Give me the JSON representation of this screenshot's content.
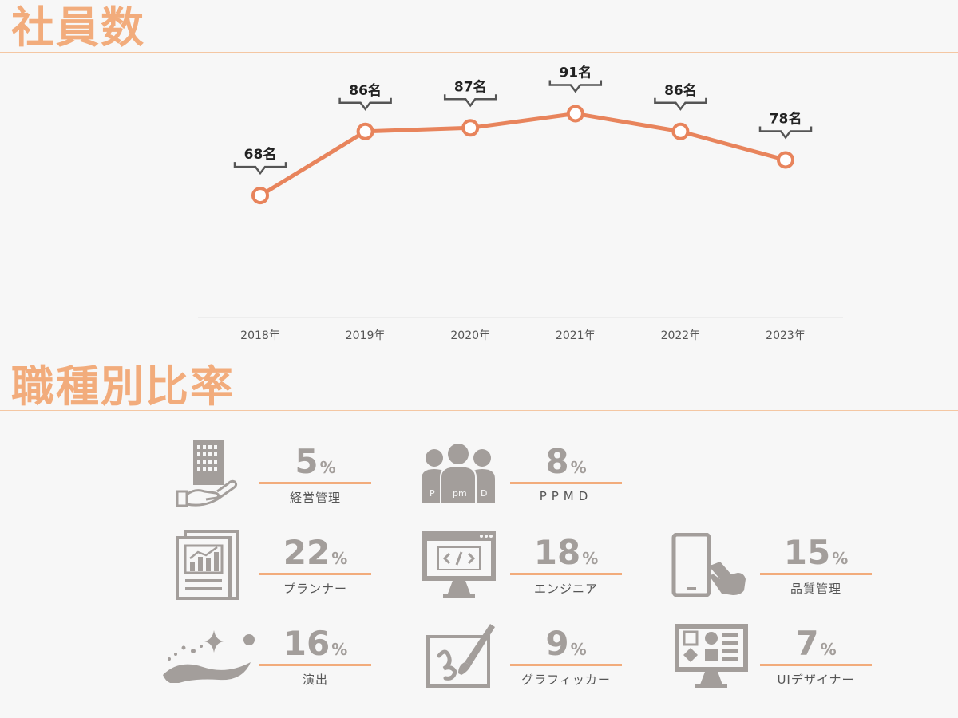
{
  "sections": {
    "employees_title": "社員数",
    "ratio_title": "職種別比率"
  },
  "colors": {
    "accent": "#f2ac7c",
    "line": "#e8845c",
    "icon": "#a39e9b"
  },
  "chart_data": {
    "type": "line",
    "title": "社員数",
    "categories": [
      "2018年",
      "2019年",
      "2020年",
      "2021年",
      "2022年",
      "2023年"
    ],
    "values": [
      68,
      86,
      87,
      91,
      86,
      78
    ],
    "data_labels": [
      "68名",
      "86名",
      "87名",
      "91名",
      "86名",
      "78名"
    ],
    "ylim": [
      40,
      105
    ],
    "xlabel": "",
    "ylabel": "",
    "grid": false
  },
  "occupations": [
    {
      "value": "5",
      "unit": "%",
      "label": "経営管理",
      "icon": "building-hand-icon"
    },
    {
      "value": "8",
      "unit": "%",
      "label": "PPMD",
      "icon": "team-icon"
    },
    {
      "value": "22",
      "unit": "%",
      "label": "プランナー",
      "icon": "document-chart-icon"
    },
    {
      "value": "18",
      "unit": "%",
      "label": "エンジニア",
      "icon": "code-monitor-icon"
    },
    {
      "value": "15",
      "unit": "%",
      "label": "品質管理",
      "icon": "tablet-touch-icon"
    },
    {
      "value": "16",
      "unit": "%",
      "label": "演出",
      "icon": "sparkle-wave-icon"
    },
    {
      "value": "9",
      "unit": "%",
      "label": "グラフィッカー",
      "icon": "paint-brush-icon"
    },
    {
      "value": "7",
      "unit": "%",
      "label": "UIデザイナー",
      "icon": "ui-monitor-icon"
    }
  ]
}
